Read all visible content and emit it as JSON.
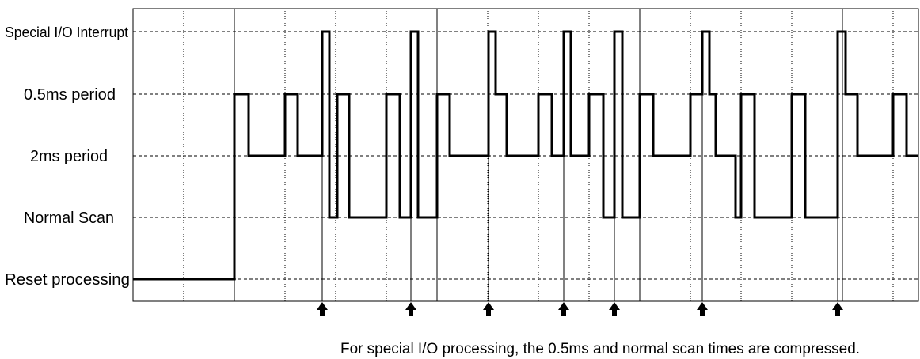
{
  "levels": [
    {
      "id": "special",
      "label": "Special I/O Interrupt"
    },
    {
      "id": "p05",
      "label": "0.5ms period"
    },
    {
      "id": "p2",
      "label": "2ms period"
    },
    {
      "id": "normal",
      "label": "Normal Scan"
    },
    {
      "id": "reset",
      "label": "Reset processing"
    }
  ],
  "caption": "For special I/O processing, the 0.5ms and normal scan times are compressed.",
  "interrupt_arrow_count": 7
}
